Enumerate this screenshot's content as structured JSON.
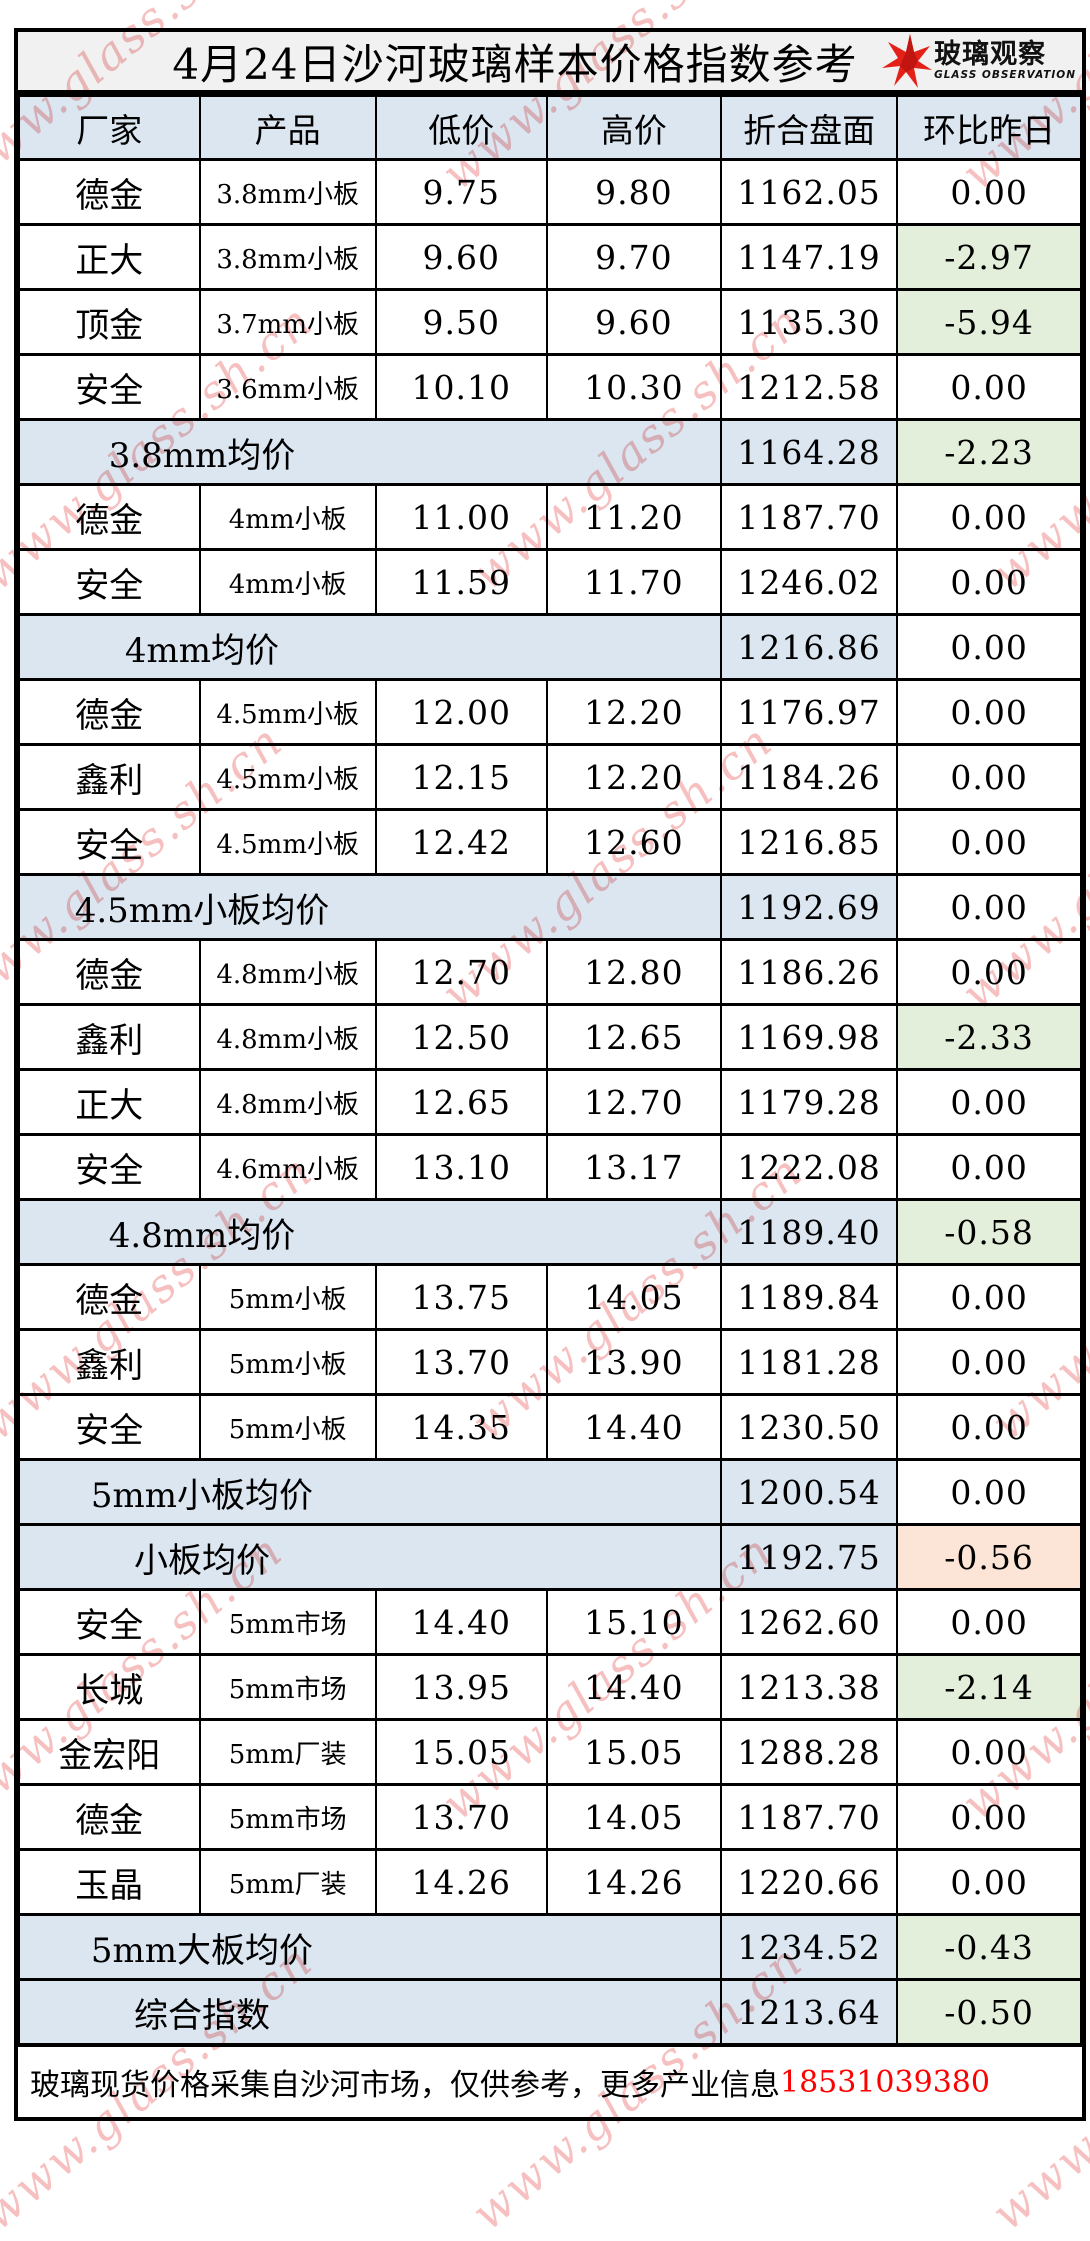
{
  "title": "4月24日沙河玻璃样本价格指数参考",
  "logo": {
    "brand_cn": "玻璃观察",
    "brand_en": "GLASS OBSERVATION",
    "star_color": "#e32119"
  },
  "watermark": {
    "text": "www.glass.sh.cn",
    "color": "#ee8c8c"
  },
  "columns": [
    "厂家",
    "产品",
    "低价",
    "高价",
    "折合盘面",
    "环比昨日"
  ],
  "rows": [
    {
      "type": "data",
      "factory": "德金",
      "product": "3.8mm小板",
      "low": "9.75",
      "high": "9.80",
      "index": "1162.05",
      "change": "0.00",
      "change_bg": "none"
    },
    {
      "type": "data",
      "factory": "正大",
      "product": "3.8mm小板",
      "low": "9.60",
      "high": "9.70",
      "index": "1147.19",
      "change": "-2.97",
      "change_bg": "green"
    },
    {
      "type": "data",
      "factory": "顶金",
      "product": "3.7mm小板",
      "low": "9.50",
      "high": "9.60",
      "index": "1135.30",
      "change": "-5.94",
      "change_bg": "green"
    },
    {
      "type": "data",
      "factory": "安全",
      "product": "3.6mm小板",
      "low": "10.10",
      "high": "10.30",
      "index": "1212.58",
      "change": "0.00",
      "change_bg": "none"
    },
    {
      "type": "summary",
      "label": "3.8mm均价",
      "index": "1164.28",
      "change": "-2.23",
      "change_bg": "green"
    },
    {
      "type": "data",
      "factory": "德金",
      "product": "4mm小板",
      "low": "11.00",
      "high": "11.20",
      "index": "1187.70",
      "change": "0.00",
      "change_bg": "none"
    },
    {
      "type": "data",
      "factory": "安全",
      "product": "4mm小板",
      "low": "11.59",
      "high": "11.70",
      "index": "1246.02",
      "change": "0.00",
      "change_bg": "none"
    },
    {
      "type": "summary",
      "label": "4mm均价",
      "index": "1216.86",
      "change": "0.00",
      "change_bg": "none"
    },
    {
      "type": "data",
      "factory": "德金",
      "product": "4.5mm小板",
      "low": "12.00",
      "high": "12.20",
      "index": "1176.97",
      "change": "0.00",
      "change_bg": "none"
    },
    {
      "type": "data",
      "factory": "鑫利",
      "product": "4.5mm小板",
      "low": "12.15",
      "high": "12.20",
      "index": "1184.26",
      "change": "0.00",
      "change_bg": "none"
    },
    {
      "type": "data",
      "factory": "安全",
      "product": "4.5mm小板",
      "low": "12.42",
      "high": "12.60",
      "index": "1216.85",
      "change": "0.00",
      "change_bg": "none"
    },
    {
      "type": "summary",
      "label": "4.5mm小板均价",
      "index": "1192.69",
      "change": "0.00",
      "change_bg": "none"
    },
    {
      "type": "data",
      "factory": "德金",
      "product": "4.8mm小板",
      "low": "12.70",
      "high": "12.80",
      "index": "1186.26",
      "change": "0.00",
      "change_bg": "none"
    },
    {
      "type": "data",
      "factory": "鑫利",
      "product": "4.8mm小板",
      "low": "12.50",
      "high": "12.65",
      "index": "1169.98",
      "change": "-2.33",
      "change_bg": "green"
    },
    {
      "type": "data",
      "factory": "正大",
      "product": "4.8mm小板",
      "low": "12.65",
      "high": "12.70",
      "index": "1179.28",
      "change": "0.00",
      "change_bg": "none"
    },
    {
      "type": "data",
      "factory": "安全",
      "product": "4.6mm小板",
      "low": "13.10",
      "high": "13.17",
      "index": "1222.08",
      "change": "0.00",
      "change_bg": "none"
    },
    {
      "type": "summary",
      "label": "4.8mm均价",
      "index": "1189.40",
      "change": "-0.58",
      "change_bg": "green"
    },
    {
      "type": "data",
      "factory": "德金",
      "product": "5mm小板",
      "low": "13.75",
      "high": "14.05",
      "index": "1189.84",
      "change": "0.00",
      "change_bg": "none"
    },
    {
      "type": "data",
      "factory": "鑫利",
      "product": "5mm小板",
      "low": "13.70",
      "high": "13.90",
      "index": "1181.28",
      "change": "0.00",
      "change_bg": "none"
    },
    {
      "type": "data",
      "factory": "安全",
      "product": "5mm小板",
      "low": "14.35",
      "high": "14.40",
      "index": "1230.50",
      "change": "0.00",
      "change_bg": "none"
    },
    {
      "type": "summary",
      "label": "5mm小板均价",
      "index": "1200.54",
      "change": "0.00",
      "change_bg": "none"
    },
    {
      "type": "summary",
      "label": "小板均价",
      "index": "1192.75",
      "change": "-0.56",
      "change_bg": "orange"
    },
    {
      "type": "data",
      "factory": "安全",
      "product": "5mm市场",
      "low": "14.40",
      "high": "15.10",
      "index": "1262.60",
      "change": "0.00",
      "change_bg": "none"
    },
    {
      "type": "data",
      "factory": "长城",
      "product": "5mm市场",
      "low": "13.95",
      "high": "14.40",
      "index": "1213.38",
      "change": "-2.14",
      "change_bg": "green"
    },
    {
      "type": "data",
      "factory": "金宏阳",
      "product": "5mm厂装",
      "low": "15.05",
      "high": "15.05",
      "index": "1288.28",
      "change": "0.00",
      "change_bg": "none"
    },
    {
      "type": "data",
      "factory": "德金",
      "product": "5mm市场",
      "low": "13.70",
      "high": "14.05",
      "index": "1187.70",
      "change": "0.00",
      "change_bg": "none"
    },
    {
      "type": "data",
      "factory": "玉晶",
      "product": "5mm厂装",
      "low": "14.26",
      "high": "14.26",
      "index": "1220.66",
      "change": "0.00",
      "change_bg": "none"
    },
    {
      "type": "summary",
      "label": "5mm大板均价",
      "index": "1234.52",
      "change": "-0.43",
      "change_bg": "green"
    },
    {
      "type": "summary",
      "label": "综合指数",
      "index": "1213.64",
      "change": "-0.50",
      "change_bg": "green"
    }
  ],
  "footer": {
    "note": "玻璃现货价格采集自沙河市场，仅供参考，更多产业信息",
    "phone": "18531039380"
  },
  "colors": {
    "header_bg": "#dce6f1",
    "summary_bg": "#dce6f1",
    "positive_none_bg": "#ffffff",
    "decline_green_bg": "#e3efdb",
    "decline_orange_bg": "#fce4d6",
    "phone_red": "#ff0000",
    "title_bg": "#f1f1f1",
    "watermark_pink": "#ee8c8c"
  }
}
